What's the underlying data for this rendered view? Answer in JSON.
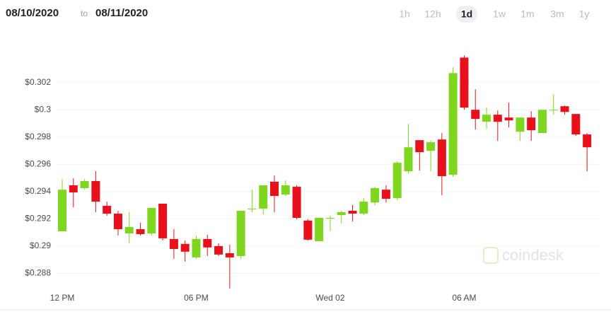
{
  "header": {
    "from": "08/10/2020",
    "to_word": "to",
    "to": "08/11/2020",
    "ranges": [
      "1h",
      "12h",
      "1d",
      "1w",
      "1m",
      "3m",
      "1y"
    ],
    "active_range": "1d"
  },
  "watermark": "coindesk",
  "chart_data": {
    "type": "candlestick",
    "categories": [
      "12 PM",
      null,
      null,
      null,
      null,
      null,
      null,
      null,
      null,
      null,
      null,
      null,
      "06 PM",
      null,
      null,
      null,
      null,
      null,
      null,
      null,
      null,
      null,
      null,
      null,
      "Wed 02",
      null,
      null,
      null,
      null,
      null,
      null,
      null,
      null,
      null,
      null,
      null,
      "06 AM",
      null,
      null,
      null,
      null,
      null,
      null,
      null,
      null,
      null,
      null,
      null
    ],
    "open": [
      0.29109,
      0.29446,
      0.29425,
      0.29477,
      0.29295,
      0.29238,
      0.29093,
      0.29124,
      0.29093,
      0.29311,
      0.29052,
      0.29016,
      0.28917,
      0.29052,
      0.29,
      0.28948,
      0.28927,
      0.2927,
      0.29275,
      0.29472,
      0.29378,
      0.29435,
      0.29187,
      0.29036,
      0.29202,
      0.29228,
      0.29259,
      0.29238,
      0.2932,
      0.29414,
      0.29352,
      0.29549,
      0.29777,
      0.29699,
      0.29782,
      0.29523,
      0.30383,
      0.3,
      0.29912,
      0.29964,
      0.29943,
      0.29839,
      0.29943,
      0.2983,
      0.29995,
      0.30026,
      0.29969,
      0.29819
    ],
    "high": [
      0.29492,
      0.29497,
      0.29492,
      0.29549,
      0.29326,
      0.29259,
      0.29249,
      0.29171,
      0.2928,
      0.29311,
      0.29124,
      0.29041,
      0.29078,
      0.29083,
      0.29021,
      0.2901,
      0.29259,
      0.29414,
      0.29446,
      0.29518,
      0.29482,
      0.29446,
      0.29197,
      0.29207,
      0.29223,
      0.29259,
      0.293,
      0.29352,
      0.29435,
      0.29446,
      0.29622,
      0.29896,
      0.29777,
      0.29777,
      0.29829,
      0.30311,
      0.30399,
      0.3015,
      0.30016,
      0.29995,
      0.30052,
      0.29943,
      0.2999,
      0.3,
      0.30114,
      0.30031,
      0.29969,
      0.29829
    ],
    "low": [
      0.2911,
      0.29285,
      0.29414,
      0.29249,
      0.29223,
      0.29078,
      0.29021,
      0.29078,
      0.29078,
      0.29041,
      0.28907,
      0.28886,
      0.28907,
      0.28927,
      0.28927,
      0.28689,
      0.28907,
      0.29249,
      0.29233,
      0.29249,
      0.29368,
      0.29197,
      0.29041,
      0.29036,
      0.29109,
      0.29166,
      0.29181,
      0.29228,
      0.293,
      0.2932,
      0.29337,
      0.29534,
      0.29554,
      0.29549,
      0.29373,
      0.29508,
      0.3,
      0.29855,
      0.2986,
      0.29772,
      0.2987,
      0.29772,
      0.29772,
      0.2983,
      0.29964,
      0.29964,
      0.29808,
      0.29549
    ],
    "close": [
      0.29414,
      0.29394,
      0.29477,
      0.29326,
      0.29238,
      0.29124,
      0.2914,
      0.29088,
      0.2928,
      0.29057,
      0.28979,
      0.28959,
      0.29052,
      0.2899,
      0.28938,
      0.28917,
      0.29259,
      0.29275,
      0.29446,
      0.29368,
      0.29446,
      0.29207,
      0.29047,
      0.29207,
      0.29207,
      0.29249,
      0.29238,
      0.29326,
      0.29425,
      0.29347,
      0.29611,
      0.29725,
      0.29689,
      0.29762,
      0.29513,
      0.30269,
      0.30016,
      0.29933,
      0.29964,
      0.29912,
      0.29922,
      0.29943,
      0.2985,
      0.3,
      0.3,
      0.29984,
      0.29819,
      0.29725
    ],
    "up_color": "#7fd61f",
    "down_color": "#e8101a",
    "ylim": [
      0.286,
      0.3052
    ],
    "yticks": [
      {
        "value": 0.288,
        "label": "$0.288"
      },
      {
        "value": 0.29,
        "label": "$0.29"
      },
      {
        "value": 0.292,
        "label": "$0.292"
      },
      {
        "value": 0.294,
        "label": "$0.294"
      },
      {
        "value": 0.296,
        "label": "$0.296"
      },
      {
        "value": 0.298,
        "label": "$0.298"
      },
      {
        "value": 0.3,
        "label": "$0.3"
      },
      {
        "value": 0.302,
        "label": "$0.302"
      }
    ],
    "grid": true
  }
}
